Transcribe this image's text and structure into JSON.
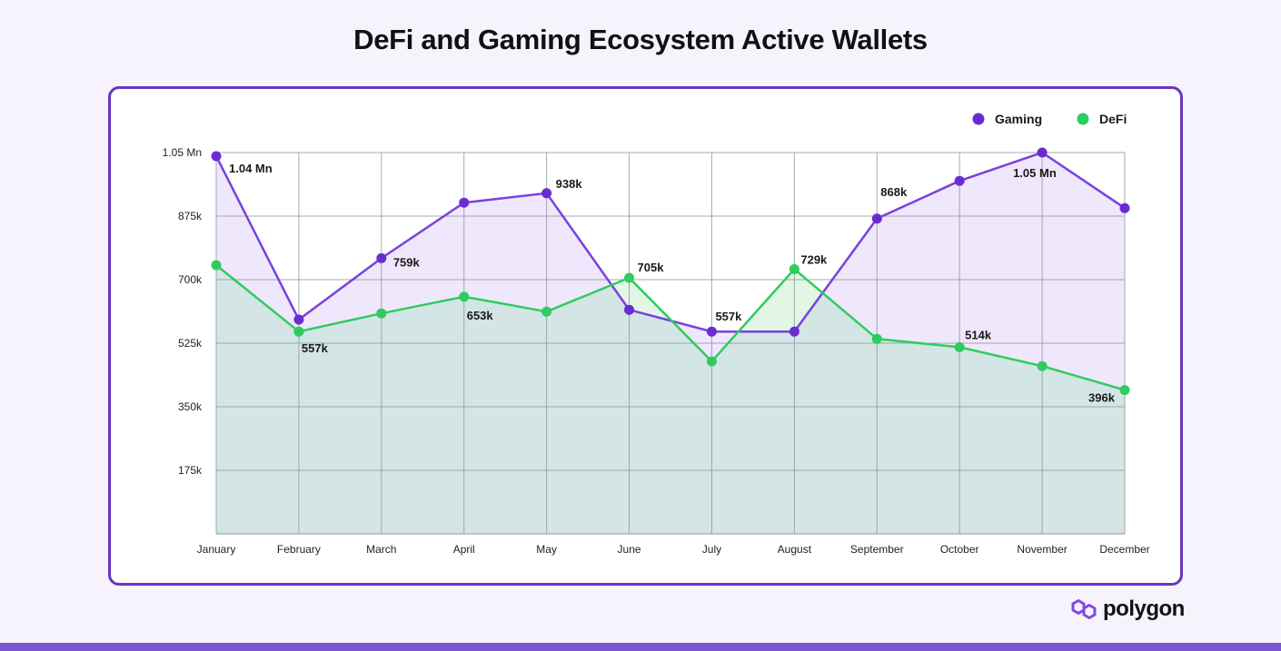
{
  "title": "DeFi and Gaming Ecosystem Active Wallets",
  "brand": {
    "name": "polygon",
    "icon": "polygon-logo-icon",
    "color": "#8247e5"
  },
  "colors": {
    "gaming": "#7b3fe0",
    "gaming_marker": "#6a2ccf",
    "defi": "#2ecc5f",
    "gaming_fill": "#efe7fb",
    "defi_fill": "#d3e5e4",
    "defi_over_fill": "#e2f6e6",
    "frame": "#6a35c2",
    "background": "#f6f3fd",
    "bottom_bar": "#7b55d6"
  },
  "legend": [
    {
      "label": "Gaming",
      "color": "#6a2ccf"
    },
    {
      "label": "DeFi",
      "color": "#2ecc5f"
    }
  ],
  "chart_data": {
    "type": "area",
    "title": "DeFi and Gaming Ecosystem Active Wallets",
    "xlabel": "",
    "ylabel": "",
    "categories": [
      "January",
      "February",
      "March",
      "April",
      "May",
      "June",
      "July",
      "August",
      "September",
      "October",
      "November",
      "December"
    ],
    "series": [
      {
        "name": "Gaming",
        "values": [
          1040000,
          590000,
          759000,
          912000,
          938000,
          617000,
          557000,
          557000,
          868000,
          972000,
          1050000,
          897000
        ],
        "labels": [
          "1.04 Mn",
          "",
          "759k",
          "",
          "938k",
          "",
          "557k",
          "",
          "868k",
          "",
          "1.05 Mn",
          ""
        ]
      },
      {
        "name": "DeFi",
        "values": [
          740000,
          557000,
          607000,
          653000,
          612000,
          705000,
          475000,
          729000,
          537000,
          514000,
          462000,
          396000
        ],
        "labels": [
          "",
          "557k",
          "",
          "653k",
          "",
          "705k",
          "",
          "729k",
          "",
          "514k",
          "",
          "396k"
        ]
      }
    ],
    "y_ticks": [
      {
        "value": 1050000,
        "label": "1.05 Mn"
      },
      {
        "value": 875000,
        "label": "875k"
      },
      {
        "value": 700000,
        "label": "700k"
      },
      {
        "value": 525000,
        "label": "525k"
      },
      {
        "value": 350000,
        "label": "350k"
      },
      {
        "value": 175000,
        "label": "175k"
      }
    ],
    "ylim": [
      0,
      1050000
    ],
    "grid": true,
    "legend_position": "top-right"
  }
}
